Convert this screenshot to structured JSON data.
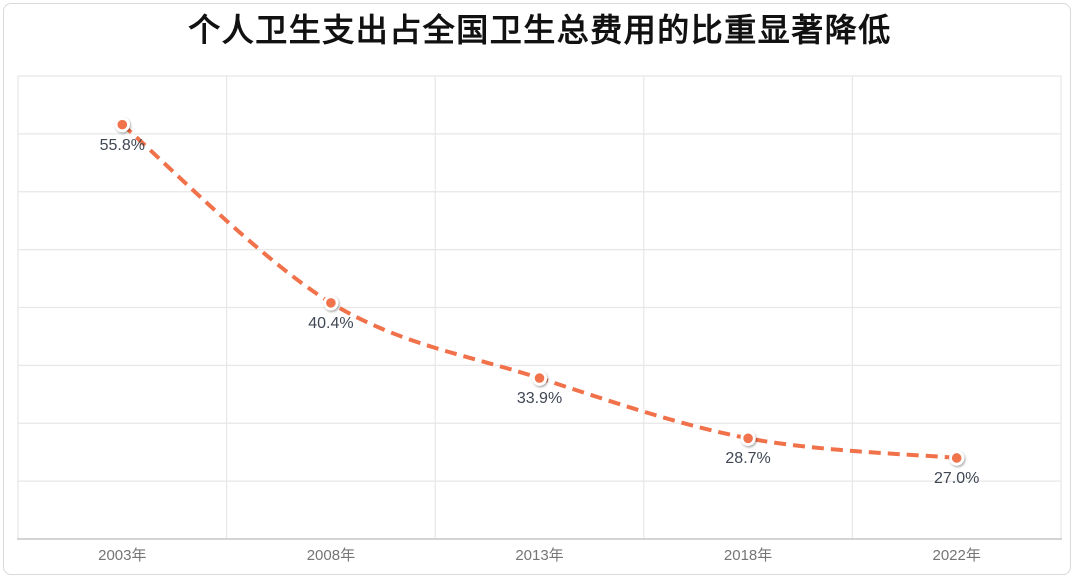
{
  "card": {
    "title": "个人卫生支出占全国卫生总费用的比重显著降低"
  },
  "chart_data": {
    "type": "line",
    "line_style": "dashed",
    "smooth": true,
    "title": "个人卫生支出占全国卫生总费用的比重显著降低",
    "categories": [
      "2003年",
      "2008年",
      "2013年",
      "2018年",
      "2022年"
    ],
    "values": [
      55.8,
      40.4,
      33.9,
      28.7,
      27.0
    ],
    "data_labels": [
      "55.8%",
      "40.4%",
      "33.9%",
      "28.7%",
      "27.0%"
    ],
    "xlabel": "",
    "ylabel": "",
    "ylim": [
      20,
      60
    ],
    "y_tick_step": 5,
    "y_tick_labels_visible": false,
    "grid": true,
    "legend": "none",
    "data_label_position": "below",
    "colors": {
      "line": "#f0714a",
      "marker_fill": "#f0734b",
      "marker_ring": "#ffffff",
      "grid": "#e7e7e7",
      "axis_line": "#c8c8c8",
      "data_label": "#3f4754",
      "tick_label": "#757575",
      "title": "#111111",
      "card_border": "#d9d9d9",
      "background": "#ffffff"
    }
  }
}
